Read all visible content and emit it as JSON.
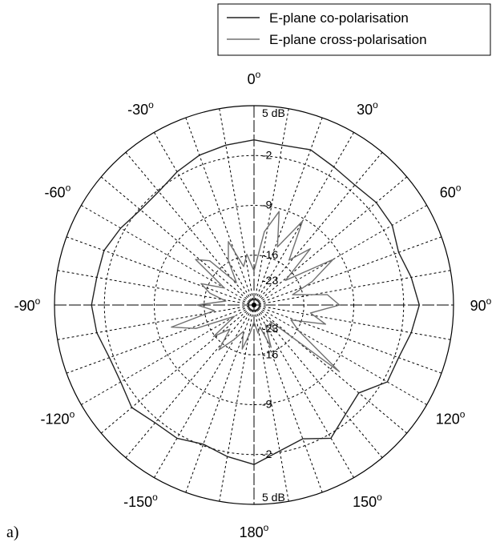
{
  "panel_label": "a)",
  "chart_data": {
    "type": "polar",
    "title": "",
    "radial_unit": "dB",
    "radial_range": [
      -30,
      5
    ],
    "radial_labels": [
      "5 dB",
      "-2",
      "-9",
      "-16",
      "-23",
      "5 dB",
      "-2",
      "-9",
      "-16",
      "-23"
    ],
    "angle_labels": [
      {
        "deg": 0,
        "text": "0",
        "sup": "o"
      },
      {
        "deg": 30,
        "text": "30",
        "sup": "o"
      },
      {
        "deg": 60,
        "text": "60",
        "sup": "o"
      },
      {
        "deg": 90,
        "text": "90",
        "sup": "o"
      },
      {
        "deg": 120,
        "text": "120",
        "sup": "o"
      },
      {
        "deg": 150,
        "text": "150",
        "sup": "o"
      },
      {
        "deg": 180,
        "text": "180",
        "sup": "o"
      },
      {
        "deg": -150,
        "text": "-150",
        "sup": "o"
      },
      {
        "deg": -120,
        "text": "-120",
        "sup": "o"
      },
      {
        "deg": -90,
        "text": "-90",
        "sup": "o"
      },
      {
        "deg": -60,
        "text": "-60",
        "sup": "o"
      },
      {
        "deg": -30,
        "text": "-30",
        "sup": "o"
      }
    ],
    "grid": true,
    "legend_position": "top-right",
    "series": [
      {
        "name": "E-plane co-polarisation",
        "color": "#222222",
        "angles_deg": [
          0,
          10,
          20,
          30,
          40,
          50,
          60,
          70,
          80,
          90,
          100,
          110,
          120,
          130,
          140,
          150,
          160,
          170,
          180,
          190,
          200,
          210,
          220,
          230,
          240,
          250,
          260,
          270,
          280,
          290,
          300,
          310,
          320,
          330,
          340,
          350
        ],
        "values_db": [
          -1,
          -1.5,
          -1,
          -2,
          -2.5,
          -2,
          -2,
          -3,
          -2,
          -1,
          -2,
          -3,
          -3,
          -6,
          -5,
          -3,
          -5,
          -4,
          -2,
          -3,
          -4,
          -3,
          -3,
          -2,
          -3,
          -3,
          -2,
          -1.5,
          -2,
          -2,
          -3,
          -4,
          -4,
          -3,
          -2,
          -1.5
        ]
      },
      {
        "name": "E-plane cross-polarisation",
        "color": "#707070",
        "angles_deg": [
          0,
          8,
          15,
          22,
          30,
          38,
          45,
          52,
          60,
          68,
          75,
          82,
          90,
          98,
          105,
          112,
          120,
          128,
          135,
          142,
          150,
          158,
          165,
          172,
          180,
          188,
          195,
          202,
          210,
          218,
          225,
          232,
          240,
          248,
          255,
          262,
          270,
          278,
          285,
          292,
          300,
          308,
          315,
          322,
          330,
          338,
          345,
          352
        ],
        "values_db": [
          -24,
          -17,
          -13,
          -19,
          -13,
          -20,
          -16,
          -23,
          -14,
          -19,
          -23,
          -17,
          -15,
          -20,
          -17,
          -23,
          -21,
          -11,
          -26,
          -24,
          -26,
          -22,
          -26,
          -25,
          -27,
          -25,
          -22,
          -25,
          -23,
          -20,
          -24,
          -21,
          -26,
          -19,
          -15,
          -23,
          -20,
          -25,
          -22,
          -20,
          -24,
          -17,
          -19,
          -25,
          -21,
          -18,
          -23,
          -21
        ]
      }
    ]
  }
}
